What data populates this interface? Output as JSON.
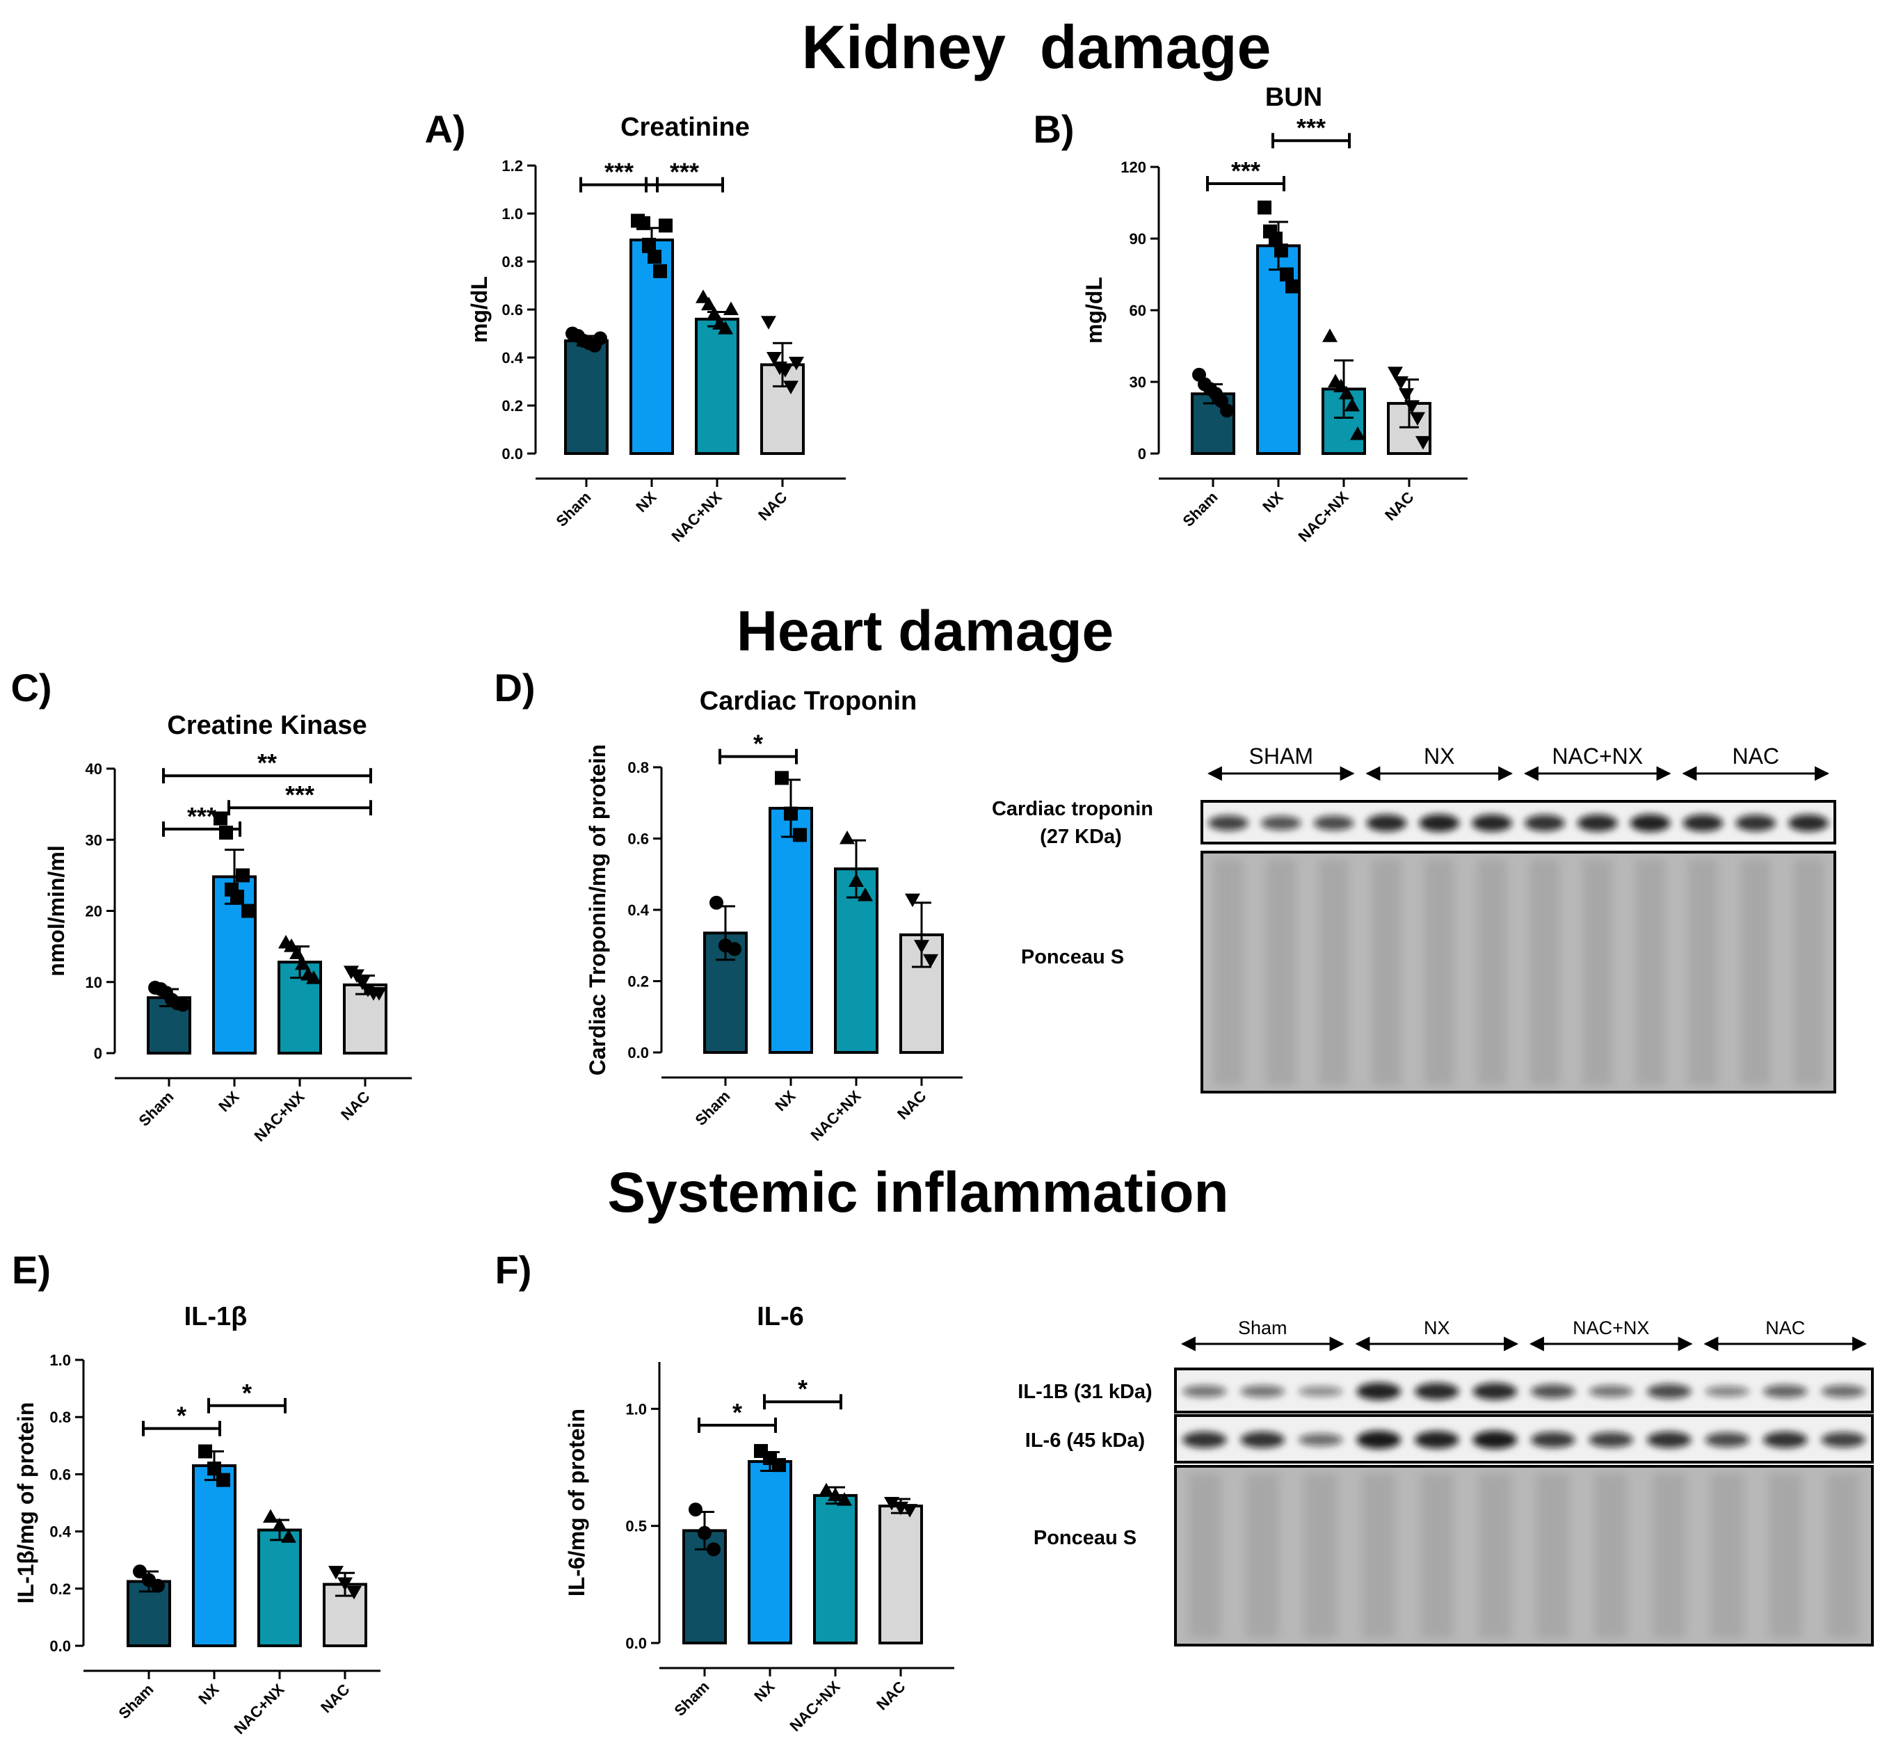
{
  "sections": {
    "kidney": "Kidney  damage",
    "heart": "Heart damage",
    "inflammation": "Systemic inflammation"
  },
  "colors": {
    "Sham": "#0e4f63",
    "NX": "#0a9cf2",
    "NAC+NX": "#0a96ab",
    "NAC": "#d7d7d7",
    "outline": "#000000"
  },
  "chart_data": [
    {
      "id": "A",
      "panel_label": "A)",
      "type": "bar",
      "title": "Creatinine",
      "ylabel": "mg/dL",
      "ylim": [
        0,
        1.2
      ],
      "yticks": [
        "0.0",
        "0.2",
        "0.4",
        "0.6",
        "0.8",
        "1.0",
        "1.2"
      ],
      "categories": [
        "Sham",
        "NX",
        "NAC+NX",
        "NAC"
      ],
      "values": [
        0.47,
        0.89,
        0.56,
        0.37
      ],
      "errors": [
        0.02,
        0.05,
        0.03,
        0.09
      ],
      "points": [
        [
          0.5,
          0.49,
          0.47,
          0.46,
          0.45,
          0.48
        ],
        [
          0.97,
          0.96,
          0.87,
          0.82,
          0.76,
          0.95
        ],
        [
          0.65,
          0.62,
          0.58,
          0.54,
          0.52,
          0.6
        ],
        [
          0.55,
          0.4,
          0.36,
          0.35,
          0.28,
          0.38
        ]
      ],
      "marker_shapes": [
        "circle",
        "square",
        "triangle",
        "down-triangle"
      ],
      "significance": [
        {
          "from": 0,
          "to": 1,
          "label": "***",
          "y": 1.12
        },
        {
          "from": 1,
          "to": 2,
          "label": "***",
          "y": 1.12
        }
      ]
    },
    {
      "id": "B",
      "panel_label": "B)",
      "type": "bar",
      "title": "BUN",
      "ylabel": "mg/dL",
      "ylim": [
        0,
        120
      ],
      "yticks": [
        "0",
        "30",
        "60",
        "90",
        "120"
      ],
      "categories": [
        "Sham",
        "NX",
        "NAC+NX",
        "NAC"
      ],
      "values": [
        25,
        87,
        27,
        21
      ],
      "errors": [
        4,
        10,
        12,
        10
      ],
      "points": [
        [
          33,
          29,
          27,
          25,
          22,
          18
        ],
        [
          103,
          93,
          90,
          85,
          75,
          70
        ],
        [
          49,
          30,
          28,
          25,
          20,
          8
        ],
        [
          34,
          30,
          25,
          20,
          15,
          5
        ]
      ],
      "marker_shapes": [
        "circle",
        "square",
        "triangle",
        "down-triangle"
      ],
      "significance": [
        {
          "from": 0,
          "to": 1,
          "label": "***",
          "y": 113
        },
        {
          "from": 1,
          "to": 2,
          "label": "***",
          "y": 131
        }
      ]
    },
    {
      "id": "C",
      "panel_label": "C)",
      "type": "bar",
      "title": "Creatine Kinase",
      "ylabel": "nmol/min/ml",
      "ylim": [
        0,
        40
      ],
      "yticks": [
        "0",
        "10",
        "20",
        "30",
        "40"
      ],
      "categories": [
        "Sham",
        "NX",
        "NAC+NX",
        "NAC"
      ],
      "values": [
        7.8,
        24.8,
        12.8,
        9.6
      ],
      "errors": [
        1.2,
        3.8,
        2.2,
        1.3
      ],
      "points": [
        [
          9.2,
          9.0,
          8.5,
          7.5,
          7.0,
          6.8
        ],
        [
          33,
          31,
          23,
          22,
          25,
          20
        ],
        [
          15.5,
          15,
          14,
          12.5,
          11,
          10.5
        ],
        [
          11.5,
          11,
          10,
          9,
          8.5,
          8.5
        ]
      ],
      "marker_shapes": [
        "circle",
        "square",
        "triangle",
        "down-triangle"
      ],
      "significance": [
        {
          "from": 0,
          "to": 3,
          "label": "**",
          "y": 39
        },
        {
          "from": 1,
          "to": 3,
          "label": "***",
          "y": 34.5
        },
        {
          "from": 0,
          "to": 1,
          "label": "***",
          "y": 31.5
        }
      ]
    },
    {
      "id": "D",
      "panel_label": "D)",
      "type": "bar",
      "title": "Cardiac Troponin",
      "ylabel": "Cardiac Troponin/mg of protein",
      "ylim": [
        0,
        0.8
      ],
      "yticks": [
        "0.0",
        "0.2",
        "0.4",
        "0.6",
        "0.8"
      ],
      "categories": [
        "Sham",
        "NX",
        "NAC+NX",
        "NAC"
      ],
      "values": [
        0.335,
        0.685,
        0.515,
        0.33
      ],
      "errors": [
        0.075,
        0.08,
        0.08,
        0.09
      ],
      "points": [
        [
          0.42,
          0.3,
          0.29
        ],
        [
          0.77,
          0.67,
          0.61
        ],
        [
          0.6,
          0.48,
          0.44
        ],
        [
          0.43,
          0.3,
          0.26
        ]
      ],
      "marker_shapes": [
        "circle",
        "square",
        "triangle",
        "down-triangle"
      ],
      "significance": [
        {
          "from": 0,
          "to": 1,
          "label": "*",
          "y": 0.83
        }
      ]
    },
    {
      "id": "E",
      "panel_label": "E)",
      "type": "bar",
      "title": "IL-1β",
      "ylabel": "IL-1β/mg of protein",
      "ylim": [
        0,
        1.0
      ],
      "yticks": [
        "0.0",
        "0.2",
        "0.4",
        "0.6",
        "0.8",
        "1.0"
      ],
      "categories": [
        "Sham",
        "NX",
        "NAC+NX",
        "NAC"
      ],
      "values": [
        0.225,
        0.63,
        0.405,
        0.215
      ],
      "errors": [
        0.035,
        0.05,
        0.035,
        0.04
      ],
      "points": [
        [
          0.26,
          0.23,
          0.21
        ],
        [
          0.68,
          0.62,
          0.58
        ],
        [
          0.45,
          0.42,
          0.38
        ],
        [
          0.26,
          0.22,
          0.19
        ]
      ],
      "marker_shapes": [
        "circle",
        "square",
        "triangle",
        "down-triangle"
      ],
      "significance": [
        {
          "from": 0,
          "to": 1,
          "label": "*",
          "y": 0.76
        },
        {
          "from": 1,
          "to": 2,
          "label": "*",
          "y": 0.84
        }
      ]
    },
    {
      "id": "F",
      "panel_label": "F)",
      "type": "bar",
      "title": "IL-6",
      "ylabel": "IL-6/mg of protein",
      "ylim": [
        0,
        1.2
      ],
      "yticks": [
        "0.0",
        "0.5",
        "1.0"
      ],
      "categories": [
        "Sham",
        "NX",
        "NAC+NX",
        "NAC"
      ],
      "values": [
        0.48,
        0.775,
        0.63,
        0.585
      ],
      "errors": [
        0.08,
        0.04,
        0.035,
        0.03
      ],
      "points": [
        [
          0.57,
          0.47,
          0.4
        ],
        [
          0.82,
          0.79,
          0.76
        ],
        [
          0.65,
          0.63,
          0.61
        ],
        [
          0.6,
          0.58,
          0.57
        ]
      ],
      "marker_shapes": [
        "circle",
        "square",
        "triangle",
        "down-triangle"
      ],
      "significance": [
        {
          "from": 0,
          "to": 1,
          "label": "*",
          "y": 0.93
        },
        {
          "from": 1,
          "to": 2,
          "label": "*",
          "y": 1.03
        }
      ]
    }
  ],
  "blots": [
    {
      "id": "troponin-blot",
      "groups": [
        "SHAM",
        "NX",
        "NAC+NX",
        "NAC"
      ],
      "bands": [
        {
          "label": "Cardiac troponin\n(27 KDa)",
          "intensities": [
            0.75,
            0.65,
            0.7,
            0.9,
            0.95,
            0.92,
            0.85,
            0.9,
            0.95,
            0.9,
            0.85,
            0.9
          ]
        },
        {
          "label": "Ponceau S",
          "stain": true
        }
      ]
    },
    {
      "id": "il-blot",
      "groups": [
        "Sham",
        "NX",
        "NAC+NX",
        "NAC"
      ],
      "bands": [
        {
          "label": "IL-1B (31 kDa)",
          "intensities": [
            0.45,
            0.45,
            0.3,
            0.95,
            0.9,
            0.9,
            0.65,
            0.45,
            0.7,
            0.35,
            0.55,
            0.5
          ]
        },
        {
          "label": "IL-6 (45 kDa)",
          "intensities": [
            0.85,
            0.85,
            0.5,
            1.0,
            0.95,
            1.0,
            0.8,
            0.75,
            0.85,
            0.7,
            0.85,
            0.75
          ]
        },
        {
          "label": "Ponceau S",
          "stain": true
        }
      ]
    }
  ]
}
